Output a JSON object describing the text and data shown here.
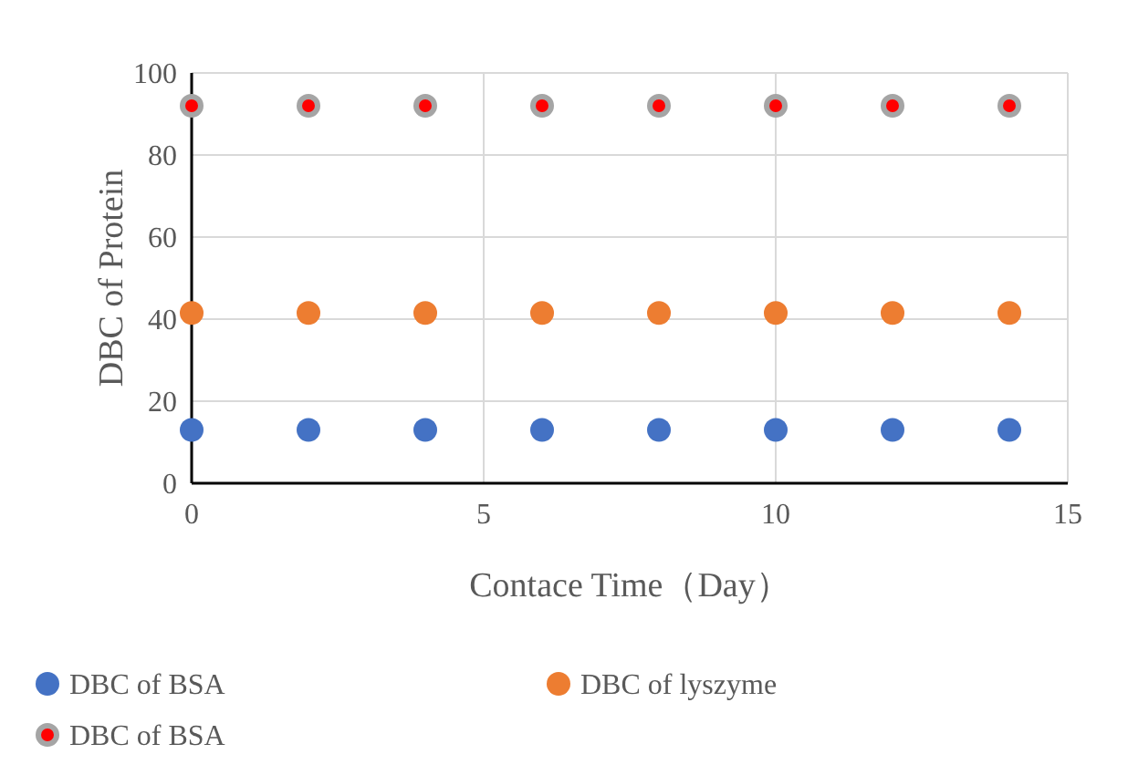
{
  "chart_data": {
    "type": "scatter",
    "xlabel": "Contace Time（Day）",
    "ylabel": "DBC of Protein",
    "x": [
      0,
      2,
      4,
      6,
      8,
      10,
      12,
      14
    ],
    "xlim": [
      0,
      15
    ],
    "xticks": [
      0,
      5,
      10,
      15
    ],
    "ylim": [
      0,
      100
    ],
    "yticks": [
      0,
      20,
      40,
      60,
      80,
      100
    ],
    "grid": true,
    "legend": "bottom",
    "marker": "circle",
    "series": [
      {
        "name": "DBC of BSA",
        "color": "#4472c4",
        "values": [
          13,
          13,
          13,
          13,
          13,
          13,
          13,
          13
        ]
      },
      {
        "name": "DBC of lyszyme",
        "color": "#ed7d31",
        "values": [
          41.5,
          41.5,
          41.5,
          41.5,
          41.5,
          41.5,
          41.5,
          41.5
        ]
      },
      {
        "name": "DBC of BSA",
        "color": "#ff0000",
        "values": [
          92,
          92,
          92,
          92,
          92,
          92,
          92,
          92
        ]
      }
    ]
  }
}
